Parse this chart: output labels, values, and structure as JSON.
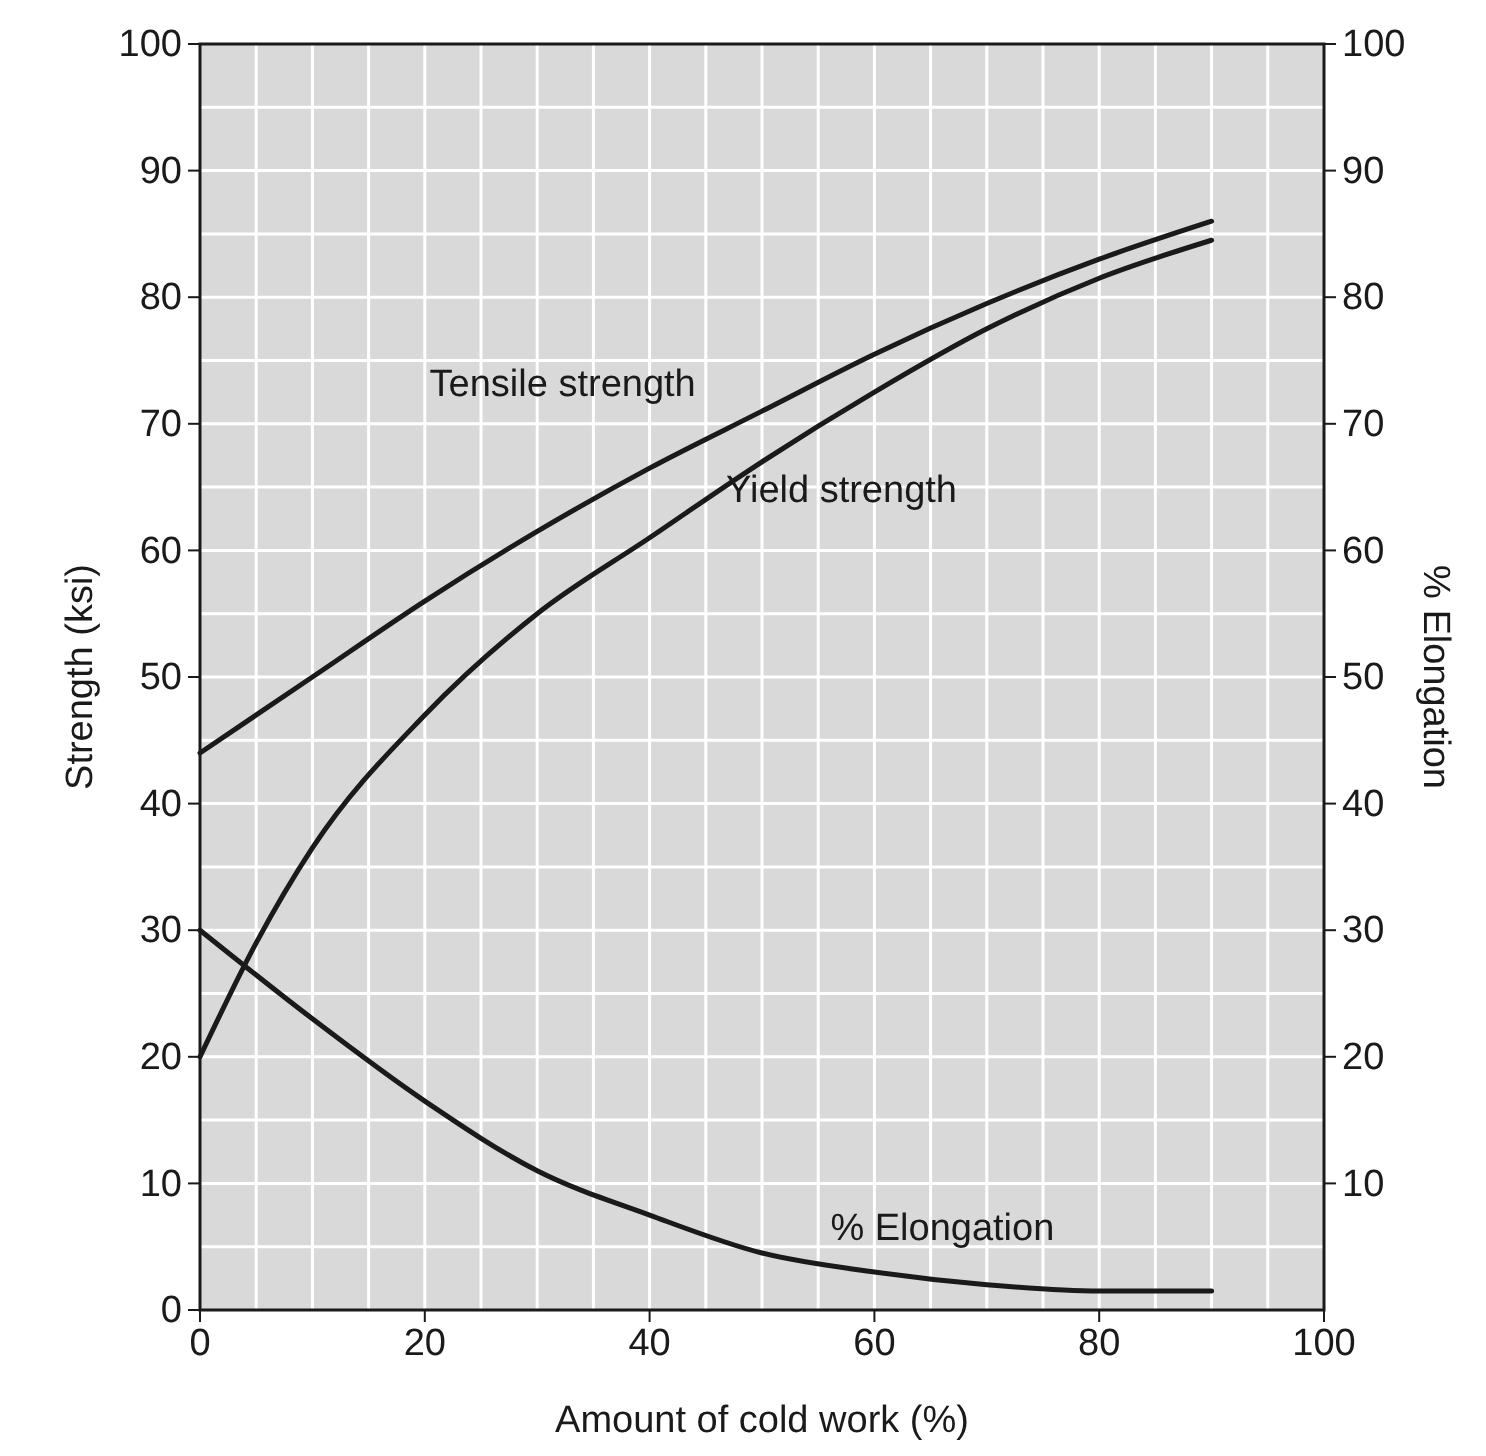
{
  "chart_data": {
    "type": "line",
    "xlabel": "Amount of cold work (%)",
    "ylabel": "Strength (ksi)",
    "y2label": "% Elongation",
    "xlim": [
      0,
      100
    ],
    "xticks": [
      0,
      20,
      40,
      60,
      80,
      100
    ],
    "ylim": [
      0,
      100
    ],
    "yticks": [
      0,
      10,
      20,
      30,
      40,
      50,
      60,
      70,
      80,
      90,
      100
    ],
    "y2lim": [
      0,
      100
    ],
    "y2ticks": [
      10,
      20,
      30,
      40,
      50,
      60,
      70,
      80,
      90,
      100
    ],
    "grid": true,
    "marker": "none",
    "line_style": "solid",
    "series": [
      {
        "name": "Tensile strength",
        "color": "#1a1a1a",
        "x": [
          0,
          10,
          20,
          30,
          40,
          50,
          60,
          70,
          80,
          90
        ],
        "values": [
          44,
          50,
          56,
          61.5,
          66.5,
          71,
          75.5,
          79.5,
          83,
          86
        ]
      },
      {
        "name": "Yield strength",
        "color": "#1a1a1a",
        "x": [
          0,
          5,
          10,
          20,
          30,
          40,
          50,
          60,
          70,
          80,
          90
        ],
        "values": [
          20,
          29,
          36.5,
          47,
          55,
          61,
          67,
          72.5,
          77.5,
          81.5,
          84.5
        ]
      },
      {
        "name": "% Elongation",
        "color": "#1a1a1a",
        "x": [
          0,
          10,
          20,
          30,
          40,
          50,
          60,
          70,
          80,
          90
        ],
        "values": [
          30,
          23,
          16.5,
          11,
          7.5,
          4.5,
          3,
          2,
          1.5,
          1.5
        ]
      }
    ]
  }
}
